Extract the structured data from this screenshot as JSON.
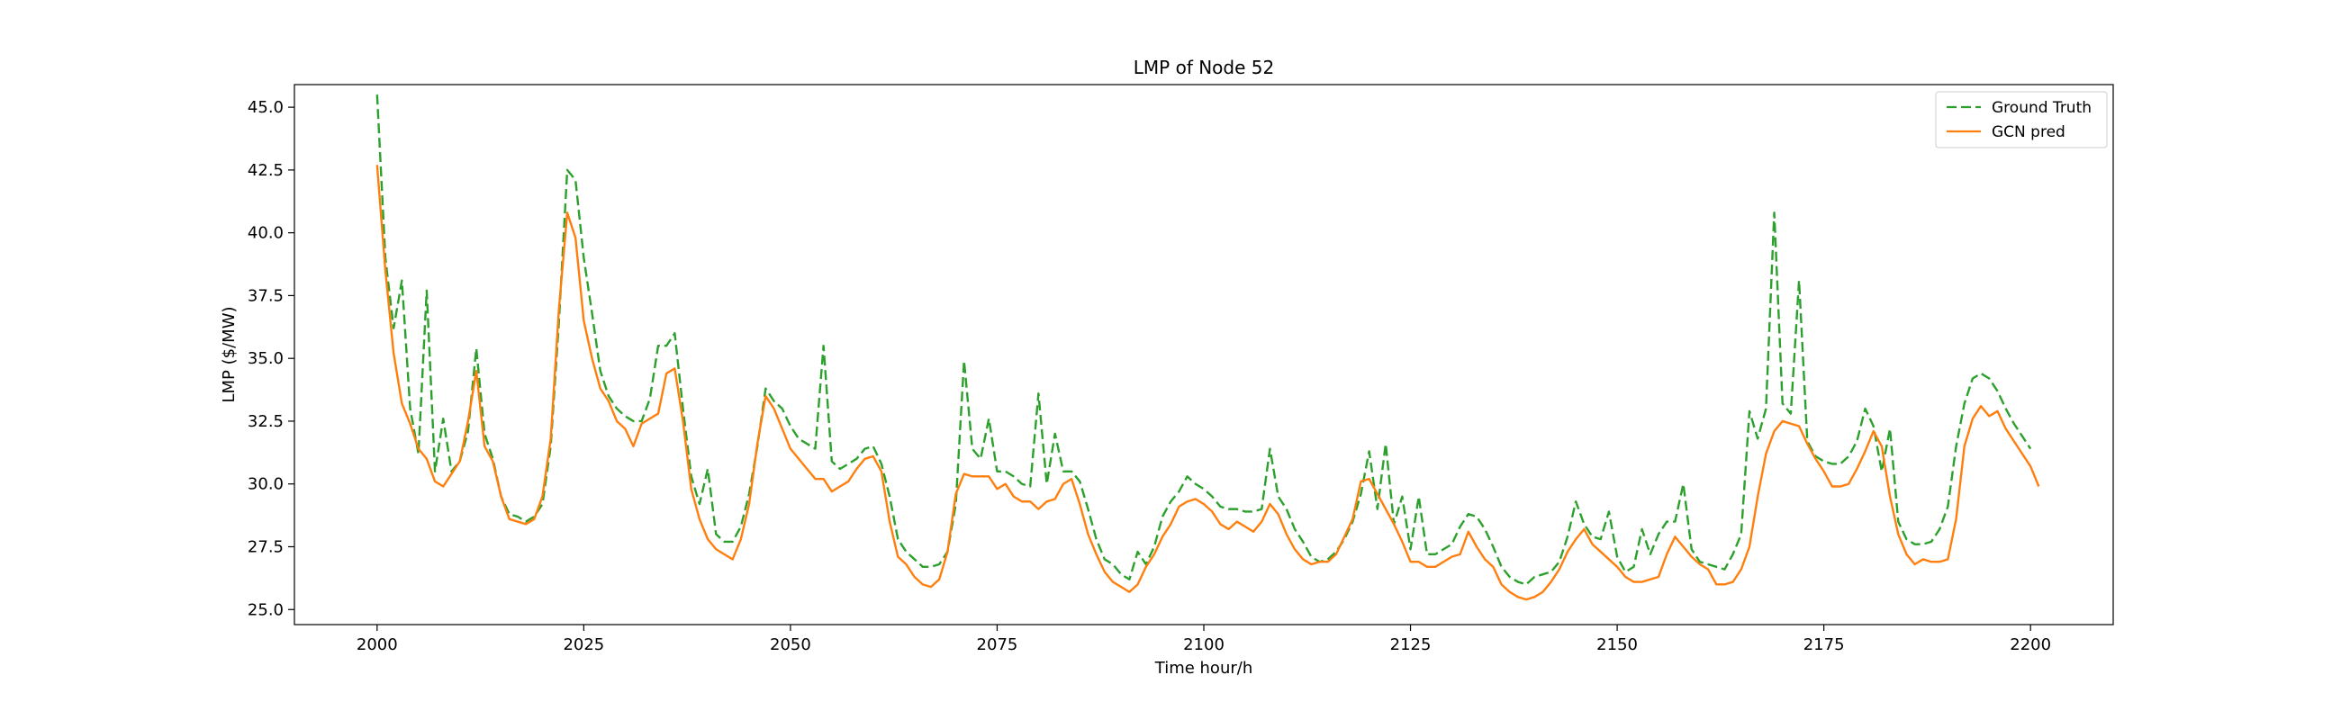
{
  "chart_data": {
    "type": "line",
    "title": "LMP of Node 52",
    "xlabel": "Time hour/h",
    "ylabel": "LMP ($/MW)",
    "xlim": [
      1990,
      2210
    ],
    "ylim": [
      24.4,
      45.9
    ],
    "xticks": [
      2000,
      2025,
      2050,
      2075,
      2100,
      2125,
      2150,
      2175,
      2200
    ],
    "xtick_labels": [
      "2000",
      "2025",
      "2050",
      "2075",
      "2100",
      "2125",
      "2150",
      "2175",
      "2200"
    ],
    "yticks": [
      25.0,
      27.5,
      30.0,
      32.5,
      35.0,
      37.5,
      40.0,
      42.5,
      45.0
    ],
    "ytick_labels": [
      "25.0",
      "27.5",
      "30.0",
      "32.5",
      "35.0",
      "37.5",
      "40.0",
      "42.5",
      "45.0"
    ],
    "legend_position": "top-right",
    "x_start": 2000,
    "series": [
      {
        "name": "Ground Truth",
        "color": "#2ca02c",
        "style": "dashed",
        "values": [
          45.5,
          39.0,
          36.2,
          38.1,
          33.0,
          31.2,
          37.7,
          30.5,
          32.6,
          30.5,
          30.9,
          32.1,
          35.4,
          32.0,
          31.0,
          29.5,
          28.8,
          28.7,
          28.5,
          28.7,
          29.2,
          31.5,
          36.5,
          42.5,
          42.1,
          39.0,
          36.8,
          34.5,
          33.5,
          33.0,
          32.7,
          32.5,
          32.5,
          33.4,
          35.5,
          35.5,
          36.0,
          33.0,
          30.3,
          29.2,
          30.6,
          28.0,
          27.7,
          27.7,
          28.3,
          29.6,
          31.5,
          33.8,
          33.3,
          33.0,
          32.3,
          31.8,
          31.6,
          31.4,
          35.5,
          30.9,
          30.6,
          30.8,
          31.0,
          31.4,
          31.5,
          30.8,
          29.5,
          27.8,
          27.3,
          27.0,
          26.7,
          26.7,
          26.8,
          27.3,
          29.2,
          34.9,
          31.4,
          31.0,
          32.6,
          30.5,
          30.5,
          30.3,
          30.0,
          29.9,
          33.6,
          30.0,
          32.0,
          30.5,
          30.5,
          30.1,
          29.0,
          27.8,
          27.0,
          26.8,
          26.4,
          26.2,
          27.3,
          26.8,
          27.5,
          28.7,
          29.3,
          29.7,
          30.3,
          30.0,
          29.8,
          29.5,
          29.1,
          29.0,
          29.0,
          28.9,
          28.9,
          29.0,
          31.4,
          29.5,
          29.0,
          28.2,
          27.7,
          27.1,
          26.9,
          27.0,
          27.3,
          27.8,
          28.5,
          29.6,
          31.3,
          29.0,
          31.6,
          28.4,
          29.5,
          27.4,
          29.5,
          27.2,
          27.2,
          27.4,
          27.6,
          28.3,
          28.8,
          28.7,
          28.2,
          27.5,
          26.7,
          26.3,
          26.1,
          26.0,
          26.3,
          26.4,
          26.5,
          26.9,
          27.9,
          29.3,
          28.4,
          27.9,
          27.8,
          28.9,
          27.1,
          26.5,
          26.7,
          28.2,
          27.2,
          28.0,
          28.5,
          28.5,
          30.0,
          27.4,
          26.9,
          26.8,
          26.7,
          26.6,
          27.2,
          28.0,
          32.9,
          31.8,
          33.0,
          40.8,
          33.2,
          32.8,
          38.1,
          31.7,
          31.1,
          30.9,
          30.8,
          30.8,
          31.1,
          31.7,
          33.0,
          32.3,
          30.5,
          32.2,
          28.5,
          27.8,
          27.6,
          27.6,
          27.7,
          28.2,
          29.1,
          31.5,
          33.2,
          34.2,
          34.4,
          34.2,
          33.7,
          33.0,
          32.4,
          31.9,
          31.4
        ]
      },
      {
        "name": "GCN pred",
        "color": "#ff7f0e",
        "style": "solid",
        "values": [
          42.7,
          38.5,
          35.2,
          33.2,
          32.4,
          31.4,
          31.0,
          30.1,
          29.9,
          30.4,
          30.9,
          32.5,
          34.5,
          31.5,
          30.9,
          29.5,
          28.6,
          28.5,
          28.4,
          28.6,
          29.5,
          31.8,
          37.0,
          40.8,
          39.8,
          36.5,
          35.0,
          33.8,
          33.3,
          32.5,
          32.2,
          31.5,
          32.4,
          32.6,
          32.8,
          34.4,
          34.6,
          32.5,
          29.8,
          28.6,
          27.8,
          27.4,
          27.2,
          27.0,
          27.8,
          29.2,
          31.6,
          33.5,
          33.0,
          32.2,
          31.4,
          31.0,
          30.6,
          30.2,
          30.2,
          29.7,
          29.9,
          30.1,
          30.6,
          31.0,
          31.1,
          30.5,
          28.5,
          27.1,
          26.8,
          26.3,
          26.0,
          25.9,
          26.2,
          27.3,
          29.6,
          30.4,
          30.3,
          30.3,
          30.3,
          29.8,
          30.0,
          29.5,
          29.3,
          29.3,
          29.0,
          29.3,
          29.4,
          30.0,
          30.2,
          29.2,
          28.0,
          27.2,
          26.5,
          26.1,
          25.9,
          25.7,
          26.0,
          26.7,
          27.2,
          27.9,
          28.4,
          29.1,
          29.3,
          29.4,
          29.2,
          28.9,
          28.4,
          28.2,
          28.5,
          28.3,
          28.1,
          28.5,
          29.2,
          28.8,
          28.0,
          27.4,
          27.0,
          26.8,
          26.9,
          26.9,
          27.2,
          27.9,
          28.6,
          30.1,
          30.2,
          29.6,
          29.0,
          28.4,
          27.7,
          26.9,
          26.9,
          26.7,
          26.7,
          26.9,
          27.1,
          27.2,
          28.1,
          27.5,
          27.0,
          26.7,
          26.0,
          25.7,
          25.5,
          25.4,
          25.5,
          25.7,
          26.1,
          26.6,
          27.3,
          27.8,
          28.2,
          27.6,
          27.3,
          27.0,
          26.7,
          26.3,
          26.1,
          26.1,
          26.2,
          26.3,
          27.2,
          27.9,
          27.5,
          27.1,
          26.8,
          26.6,
          26.0,
          26.0,
          26.1,
          26.6,
          27.5,
          29.5,
          31.2,
          32.1,
          32.5,
          32.4,
          32.3,
          31.6,
          31.0,
          30.5,
          29.9,
          29.9,
          30.0,
          30.6,
          31.3,
          32.1,
          31.5,
          29.5,
          28.0,
          27.2,
          26.8,
          27.0,
          26.9,
          26.9,
          27.0,
          28.6,
          31.5,
          32.6,
          33.1,
          32.7,
          32.9,
          32.2,
          31.7,
          31.2,
          30.7,
          29.9
        ]
      }
    ]
  }
}
